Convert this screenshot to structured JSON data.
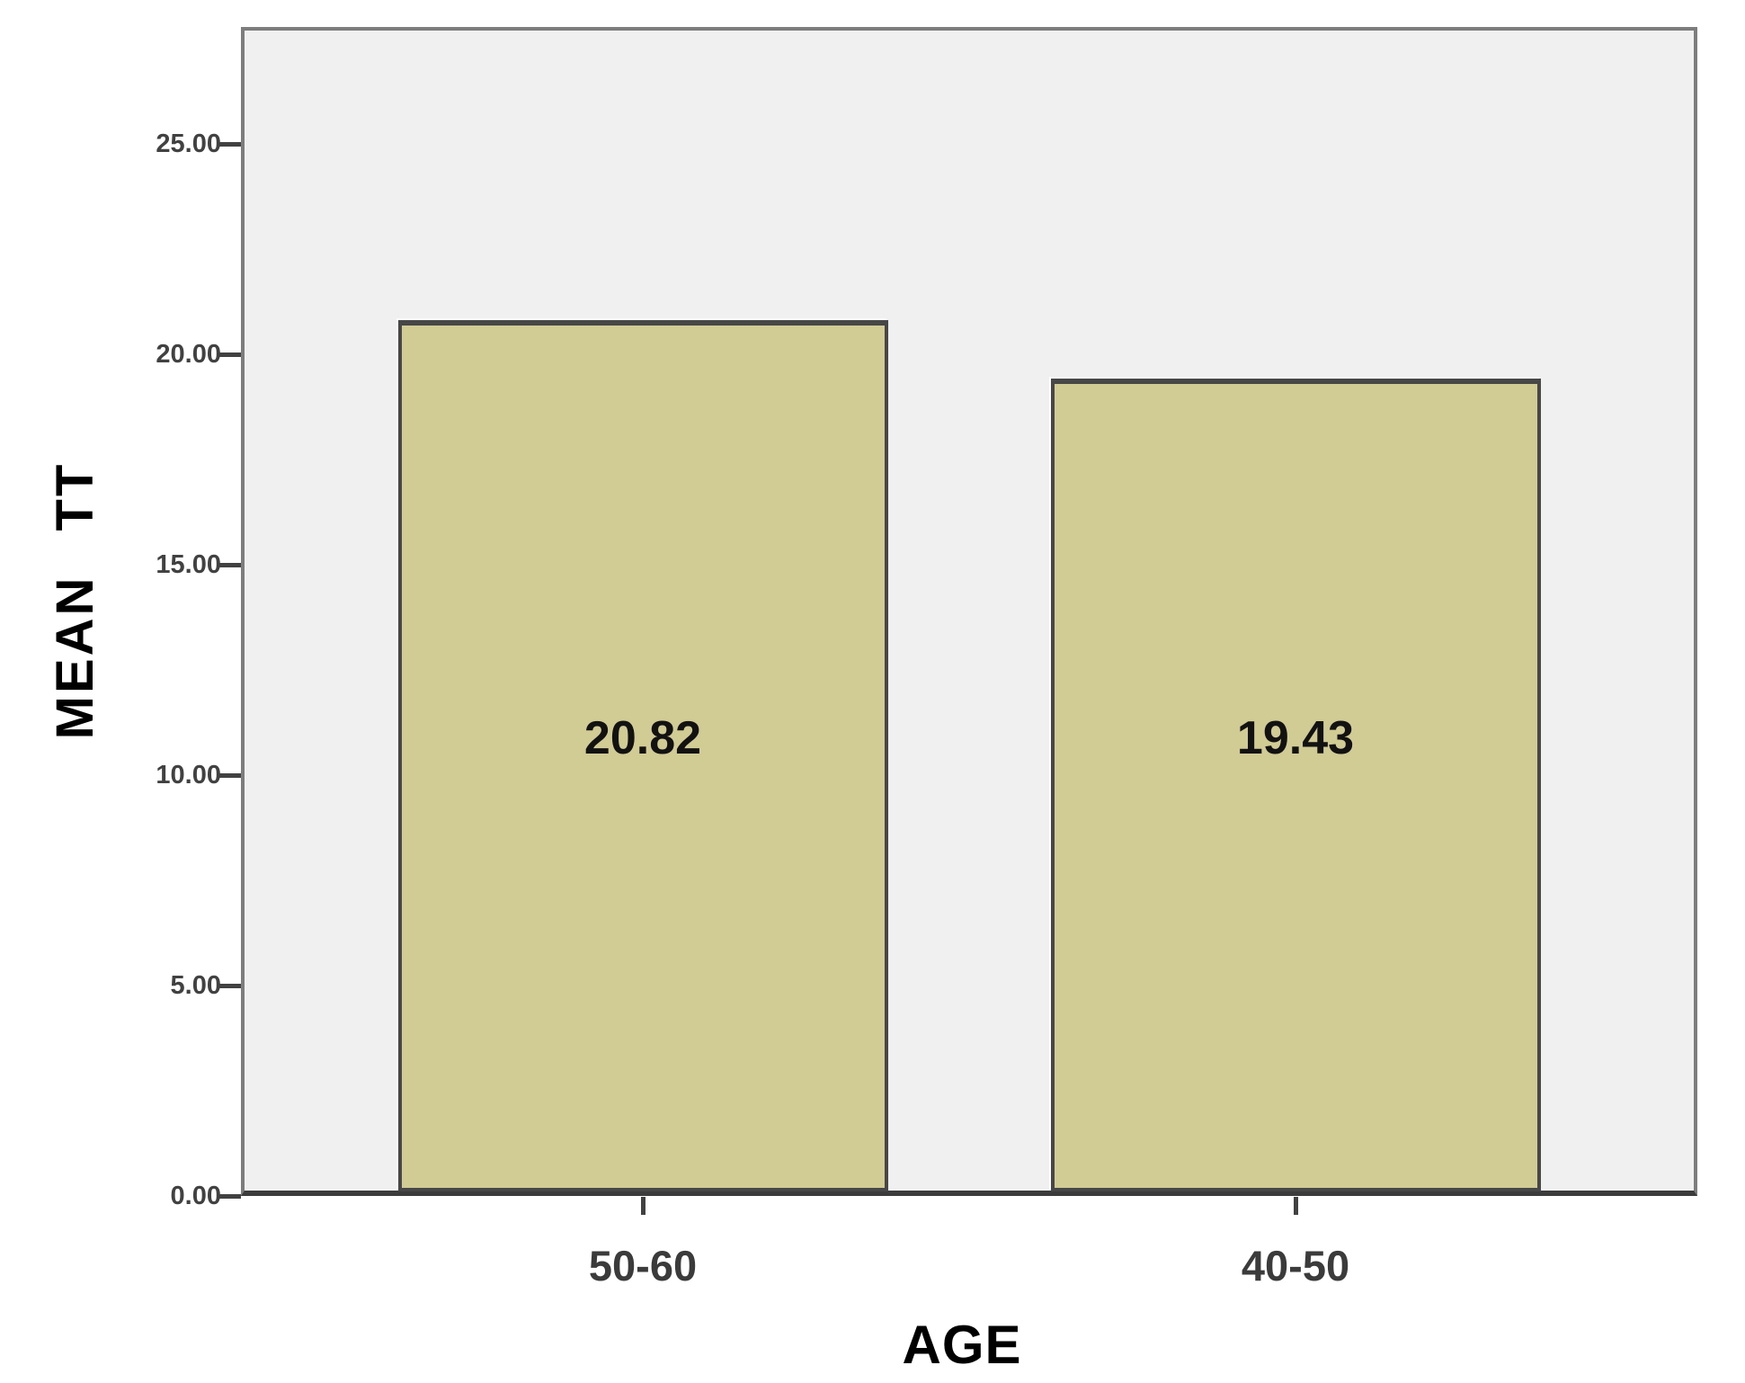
{
  "chart_data": {
    "type": "bar",
    "categories": [
      "50-60",
      "40-50"
    ],
    "values": [
      20.82,
      19.43
    ],
    "value_labels": [
      "20.82",
      "19.43"
    ],
    "title": "",
    "xlabel": "AGE",
    "ylabel": "MEAN TT",
    "ylim": [
      0,
      27.8
    ],
    "yticks": [
      {
        "value": 25,
        "label": "25.00"
      },
      {
        "value": 20,
        "label": "20.00"
      },
      {
        "value": 15,
        "label": "15.00"
      },
      {
        "value": 10,
        "label": "10.00"
      },
      {
        "value": 5,
        "label": "5.00"
      },
      {
        "value": 0,
        "label": "0.00"
      }
    ],
    "grid": false,
    "legend": null
  },
  "colors": {
    "bar_fill": "#d1cb94",
    "bar_border": "#474747",
    "plot_bg": "#f0f0f0",
    "frame_border": "#7d7d7d",
    "axis_line": "#3c3c3c",
    "tick_label": "#414141",
    "text": "#000000",
    "canvas_bg": "#ffffff"
  }
}
